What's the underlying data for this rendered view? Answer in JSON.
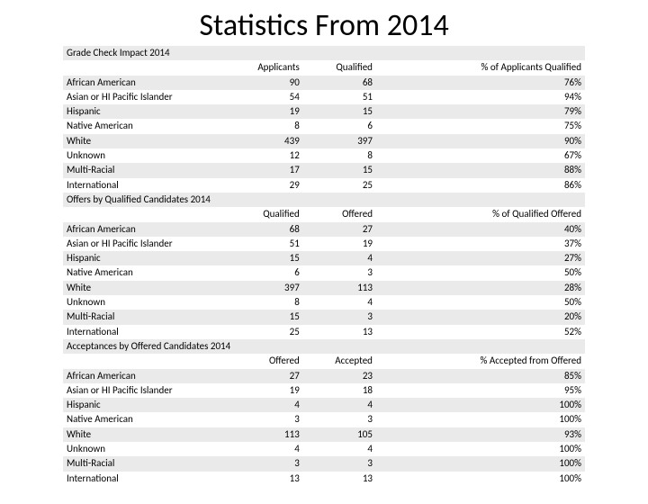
{
  "title": "Statistics From 2014",
  "tables": [
    {
      "section": "Grade Check Impact 2014",
      "columns": [
        "",
        "Applicants",
        "Qualified",
        "% of Applicants Qualified"
      ],
      "rows": [
        [
          "African American",
          "90",
          "68",
          "76%"
        ],
        [
          "Asian or HI Pacific Islander",
          "54",
          "51",
          "94%"
        ],
        [
          "Hispanic",
          "19",
          "15",
          "79%"
        ],
        [
          "Native American",
          "8",
          "6",
          "75%"
        ],
        [
          "White",
          "439",
          "397",
          "90%"
        ],
        [
          "Unknown",
          "12",
          "8",
          "67%"
        ],
        [
          "Multi-Racial",
          "17",
          "15",
          "88%"
        ],
        [
          "International",
          "29",
          "25",
          "86%"
        ]
      ]
    },
    {
      "section": "Offers by Qualified Candidates 2014",
      "columns": [
        "",
        "Qualified",
        "Offered",
        "% of Qualified Offered"
      ],
      "rows": [
        [
          "African American",
          "68",
          "27",
          "40%"
        ],
        [
          "Asian or HI Pacific Islander",
          "51",
          "19",
          "37%"
        ],
        [
          "Hispanic",
          "15",
          "4",
          "27%"
        ],
        [
          "Native American",
          "6",
          "3",
          "50%"
        ],
        [
          "White",
          "397",
          "113",
          "28%"
        ],
        [
          "Unknown",
          "8",
          "4",
          "50%"
        ],
        [
          "Multi-Racial",
          "15",
          "3",
          "20%"
        ],
        [
          "International",
          "25",
          "13",
          "52%"
        ]
      ]
    },
    {
      "section": "Acceptances by Offered Candidates 2014",
      "columns": [
        "",
        "Offered",
        "Accepted",
        "% Accepted from Offered"
      ],
      "rows": [
        [
          "African American",
          "27",
          "23",
          "85%"
        ],
        [
          "Asian or HI Pacific Islander",
          "19",
          "18",
          "95%"
        ],
        [
          "Hispanic",
          "4",
          "4",
          "100%"
        ],
        [
          "Native American",
          "3",
          "3",
          "100%"
        ],
        [
          "White",
          "113",
          "105",
          "93%"
        ],
        [
          "Unknown",
          "4",
          "4",
          "100%"
        ],
        [
          "Multi-Racial",
          "3",
          "3",
          "100%"
        ],
        [
          "International",
          "13",
          "13",
          "100%"
        ]
      ]
    }
  ],
  "colors": {
    "band": "#eaeaea",
    "background": "#ffffff",
    "text": "#000000"
  }
}
